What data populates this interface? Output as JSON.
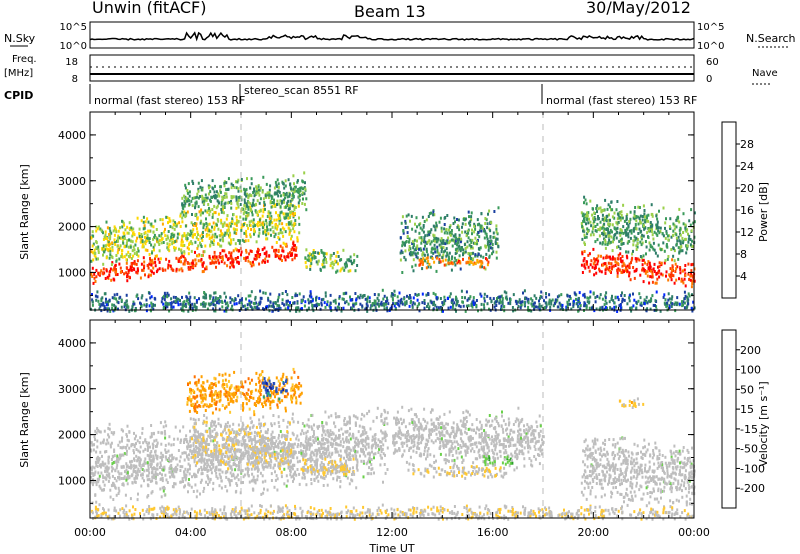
{
  "header": {
    "station": "Unwin (fitACF)",
    "beam": "Beam 13",
    "date": "30/May/2012"
  },
  "panels": {
    "nsky_label": "N.Sky",
    "nsearch_label": "N.Search",
    "count_ticks": [
      "10^5",
      "10^0"
    ],
    "freq_label": "Freq.",
    "freq_unit": "[MHz]",
    "freq_ticks": [
      "18",
      "8"
    ],
    "nave_label": "Nave",
    "nave_ticks": [
      "60",
      "0"
    ],
    "cpid_label": "CPID",
    "cpid_segments": [
      {
        "text": "normal (fast stereo) 153 RF",
        "start_hr": 0
      },
      {
        "text": "stereo_scan 8551 RF",
        "start_hr": 6
      },
      {
        "text": "normal (fast stereo) 153 RF",
        "start_hr": 18
      }
    ]
  },
  "colorbars": {
    "power": {
      "label": "Power [dB]",
      "ticks": [
        "28",
        "24",
        "20",
        "16",
        "12",
        "8",
        "4"
      ],
      "colors": [
        "#0028ff",
        "#1a3fa0",
        "#2e7d68",
        "#3a9a5a",
        "#9bd04a",
        "#ffd800",
        "#ffa800",
        "#ff7a00",
        "#ff3c00",
        "#ff0000"
      ]
    },
    "velocity": {
      "label": "Velocity [m s⁻¹]",
      "ticks": [
        "200",
        "100",
        "50",
        "15",
        "-15",
        "-50",
        "-100",
        "-200"
      ],
      "colors": [
        "#ff0000",
        "#ff7000",
        "#ffa000",
        "#ffc830",
        "#bebebe",
        "#bebebe",
        "#6ad04a",
        "#2aa02a",
        "#20a080",
        "#2a55c0",
        "#1020a0"
      ]
    }
  },
  "chart_data": [
    {
      "type": "heatmap",
      "panel": "power",
      "ylabel": "Slant Range [km]",
      "xlabel": "Time UT",
      "xlim_hours": [
        0,
        24
      ],
      "ylim_km": [
        180,
        4500
      ],
      "yticks": [
        "1000",
        "2000",
        "3000",
        "4000"
      ],
      "xticks": [
        "00:00",
        "04:00",
        "08:00",
        "12:00",
        "16:00",
        "20:00",
        "00:00"
      ],
      "unit": "dB",
      "scatter_bands": [
        {
          "t0": 0,
          "t1": 8.3,
          "r_center_start": 1000,
          "r_center_end": 1500,
          "width": 250,
          "value": 28
        },
        {
          "t0": 0,
          "t1": 8.3,
          "r_center_start": 1600,
          "r_center_end": 2200,
          "width": 550,
          "value": 14
        },
        {
          "t0": 3.6,
          "t1": 8.6,
          "r_center_start": 2600,
          "r_center_end": 2800,
          "width": 450,
          "value": 10
        },
        {
          "t0": 8.5,
          "t1": 10.6,
          "r_center_start": 1300,
          "r_center_end": 1250,
          "width": 280,
          "value": 12
        },
        {
          "t0": 12.3,
          "t1": 16.2,
          "r_center_start": 1650,
          "r_center_end": 1800,
          "width": 700,
          "value": 9
        },
        {
          "t0": 13.0,
          "t1": 15.8,
          "r_center_start": 1250,
          "r_center_end": 1250,
          "width": 120,
          "value": 24
        },
        {
          "t0": 19.5,
          "t1": 24,
          "r_center_start": 1300,
          "r_center_end": 950,
          "width": 330,
          "value": 28
        },
        {
          "t0": 19.5,
          "t1": 24,
          "r_center_start": 2100,
          "r_center_end": 1800,
          "width": 650,
          "value": 10
        },
        {
          "t0": 0,
          "t1": 24,
          "r_center_start": 350,
          "r_center_end": 350,
          "width": 300,
          "value": 6
        }
      ]
    },
    {
      "type": "heatmap",
      "panel": "velocity",
      "ylabel": "Slant Range [km]",
      "xlabel": "Time UT",
      "xlim_hours": [
        0,
        24
      ],
      "ylim_km": [
        180,
        4500
      ],
      "yticks": [
        "1000",
        "2000",
        "3000",
        "4000"
      ],
      "xticks": [
        "00:00",
        "04:00",
        "08:00",
        "12:00",
        "16:00",
        "20:00",
        "00:00"
      ],
      "unit": "m/s",
      "scatter_bands": [
        {
          "t0": 0,
          "t1": 11.8,
          "r_center_start": 1350,
          "r_center_end": 1800,
          "width": 900,
          "value": 0
        },
        {
          "t0": 4.0,
          "t1": 8.0,
          "r_center_start": 1900,
          "r_center_end": 1700,
          "width": 600,
          "value": -60
        },
        {
          "t0": 3.8,
          "t1": 8.4,
          "r_center_start": 2900,
          "r_center_end": 3000,
          "width": 500,
          "value": -150
        },
        {
          "t0": 6.8,
          "t1": 7.8,
          "r_center_start": 3050,
          "r_center_end": 3050,
          "width": 250,
          "value": 200
        },
        {
          "t0": 8.3,
          "t1": 10.5,
          "r_center_start": 1300,
          "r_center_end": 1250,
          "width": 300,
          "value": -70
        },
        {
          "t0": 12.6,
          "t1": 16.5,
          "r_center_start": 1250,
          "r_center_end": 1200,
          "width": 150,
          "value": -60
        },
        {
          "t0": 12.0,
          "t1": 18.0,
          "r_center_start": 2000,
          "r_center_end": 1900,
          "width": 700,
          "value": 0
        },
        {
          "t0": 15.6,
          "t1": 16.8,
          "r_center_start": 1450,
          "r_center_end": 1450,
          "width": 150,
          "value": 50
        },
        {
          "t0": 19.5,
          "t1": 24,
          "r_center_start": 1300,
          "r_center_end": 1150,
          "width": 800,
          "value": 0
        },
        {
          "t0": 21.0,
          "t1": 22.0,
          "r_center_start": 2700,
          "r_center_end": 2700,
          "width": 120,
          "value": -100
        },
        {
          "t0": 0,
          "t1": 24,
          "r_center_start": 300,
          "r_center_end": 300,
          "width": 200,
          "value": -60
        }
      ]
    }
  ]
}
